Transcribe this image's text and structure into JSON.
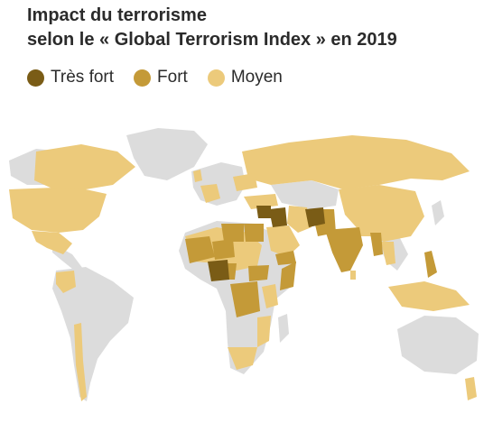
{
  "title": {
    "line1": "Impact du terrorisme",
    "line2": "selon le « Global Terrorism Index » en 2019"
  },
  "legend": [
    {
      "label": "Très fort",
      "color": "#7a5c16"
    },
    {
      "label": "Fort",
      "color": "#c49a38"
    },
    {
      "label": "Moyen",
      "color": "#ecca7b"
    }
  ],
  "map": {
    "base_color": "#dcdcdc",
    "categories": {
      "tres_fort": [
        "Afghanistan",
        "Irak",
        "Nigeria",
        "Syrie"
      ],
      "fort": [
        "Pakistan",
        "Inde",
        "Somalie",
        "Mali",
        "Niger",
        "Égypte",
        "Libye",
        "Yémen",
        "RD Congo",
        "Soudan du Sud",
        "Cameroun",
        "Burkina Faso",
        "Philippines",
        "Myanmar",
        "Éthiopie"
      ],
      "moyen": [
        "États-Unis",
        "Canada",
        "Mexique",
        "Colombie",
        "Chili",
        "Russie",
        "Chine",
        "Algérie",
        "Mauritanie",
        "Tchad",
        "Soudan",
        "Arabie saoudite",
        "Kenya",
        "Mozambique",
        "Afrique du Sud",
        "Iran",
        "Turquie",
        "France",
        "Royaume-Uni",
        "Espagne",
        "Ukraine",
        "Thaïlande",
        "Indonésie",
        "Bangladesh",
        "Népal",
        "Sri Lanka",
        "Nouvelle-Zélande"
      ]
    }
  }
}
